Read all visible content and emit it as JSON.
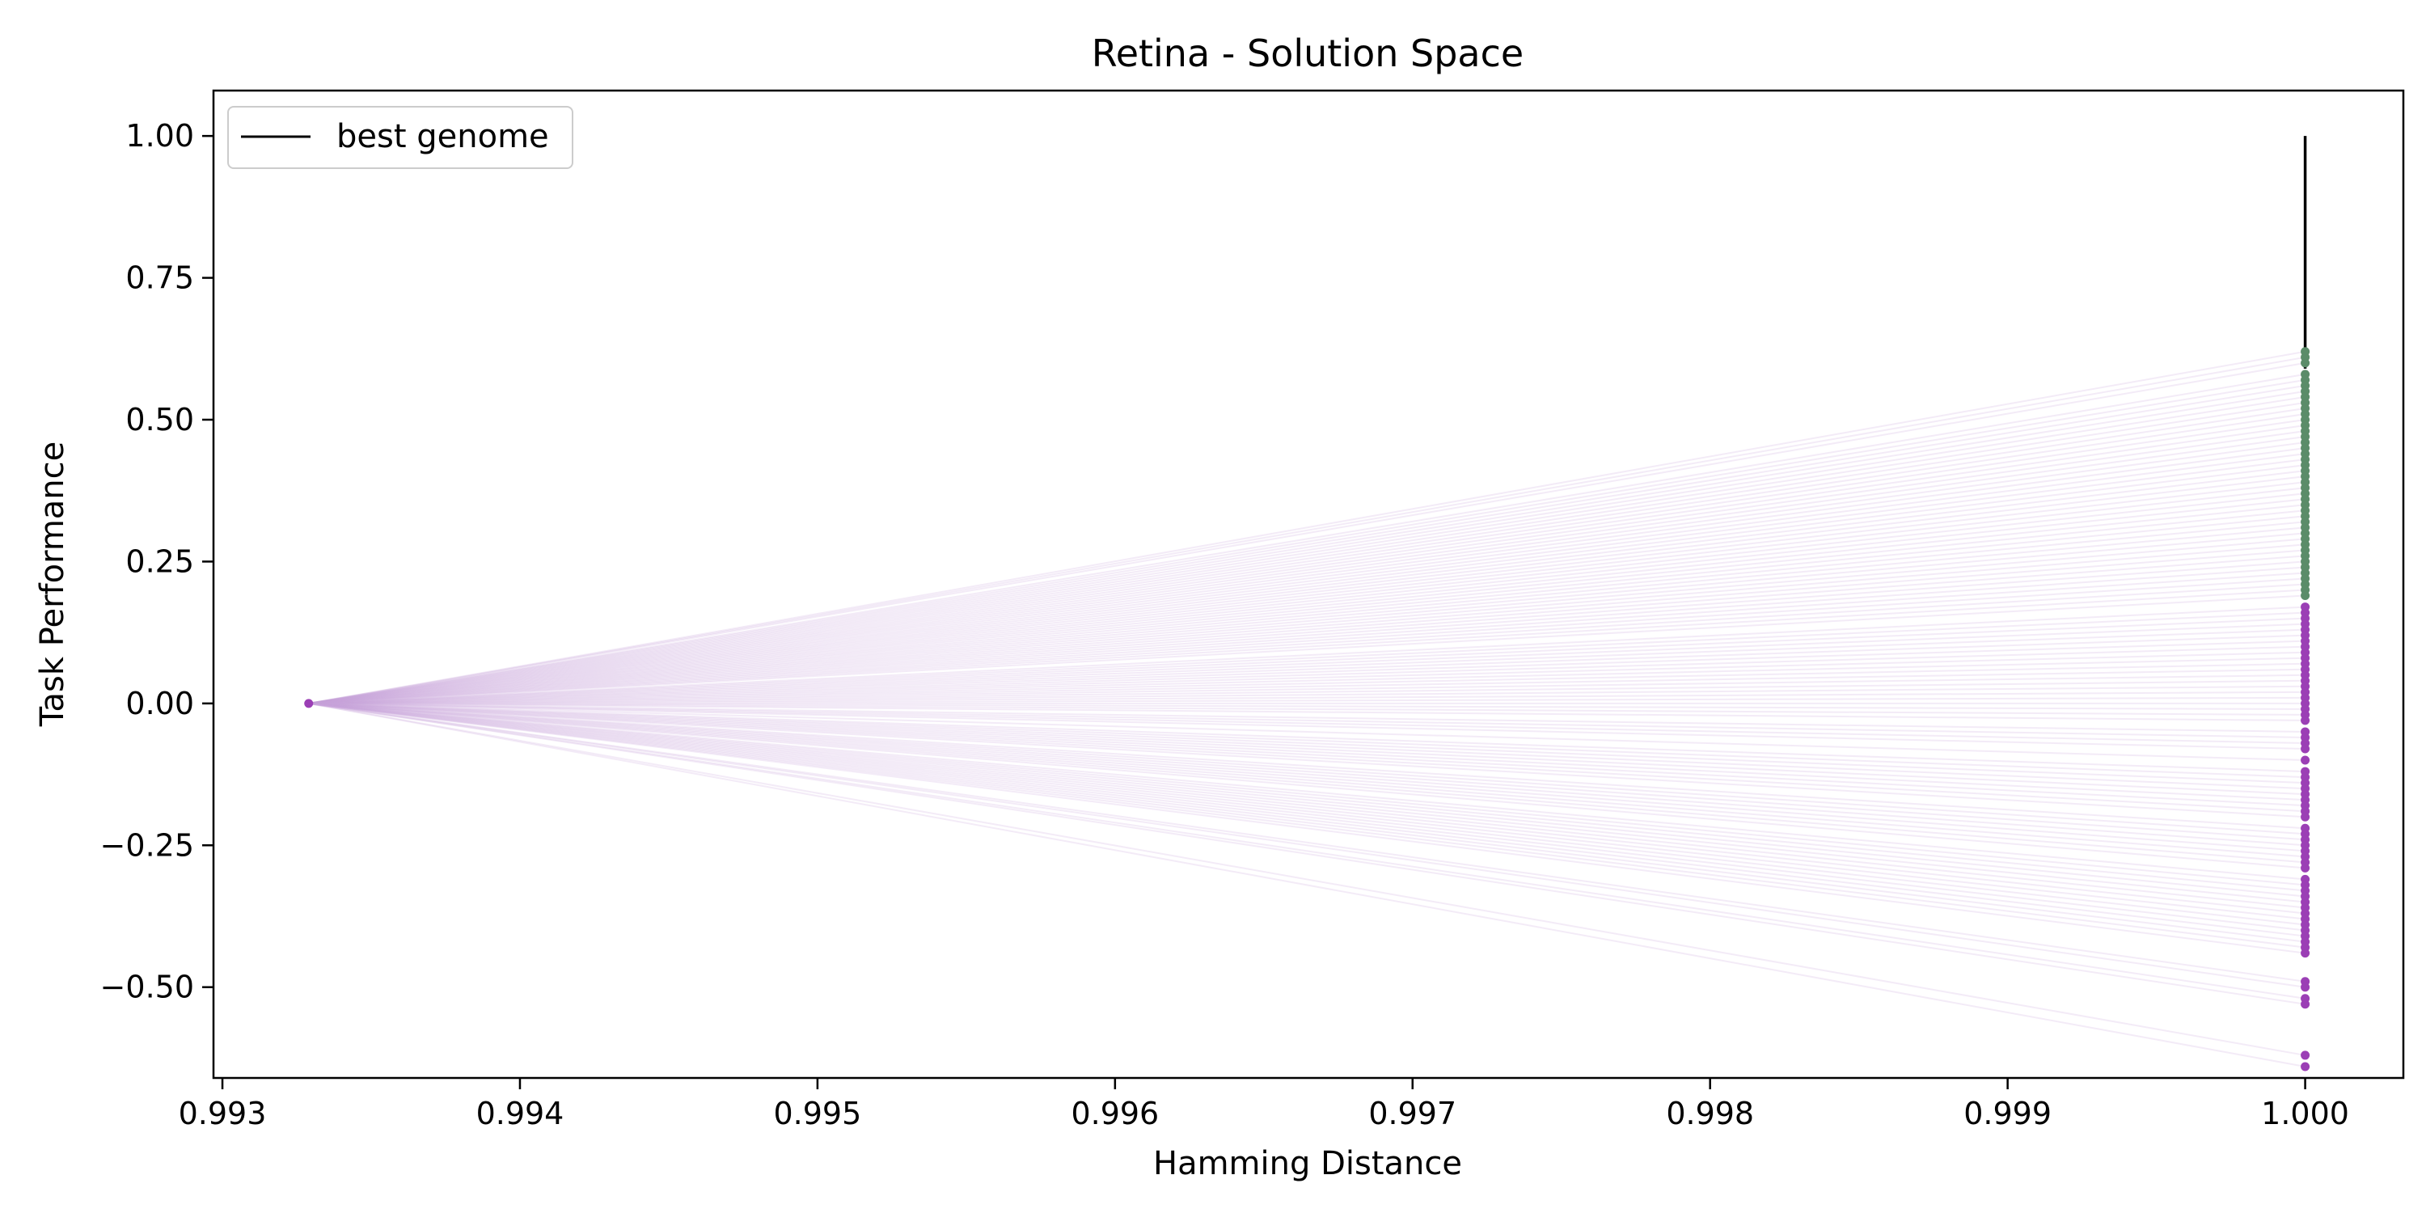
{
  "chart_data": {
    "type": "scatter",
    "title": "Retina - Solution Space",
    "xlabel": "Hamming Distance",
    "ylabel": "Task Performance",
    "xlim": [
      0.99297,
      1.00033
    ],
    "ylim": [
      -0.66,
      1.08
    ],
    "grid": false,
    "x_ticks": [
      0.993,
      0.994,
      0.995,
      0.996,
      0.997,
      0.998,
      0.999,
      1.0
    ],
    "x_tick_labels": [
      "0.993",
      "0.994",
      "0.995",
      "0.996",
      "0.997",
      "0.998",
      "0.999",
      "1.000"
    ],
    "y_ticks": [
      1.0,
      0.75,
      0.5,
      0.25,
      0.0,
      -0.25,
      -0.5
    ],
    "y_tick_labels": [
      "1.00",
      "0.75",
      "0.50",
      "0.25",
      "0.00",
      "−0.25",
      "−0.50"
    ],
    "legend": {
      "placement": "upper-left",
      "entries": [
        {
          "label": "best genome",
          "color": "#000000",
          "marker": "line"
        }
      ]
    },
    "origin_point": {
      "x": 0.99329,
      "y": 0.0,
      "color": "#9b3fb5"
    },
    "best_genome": {
      "x": 1.0,
      "y_from": 0.59,
      "y_to": 1.0,
      "color": "#000000"
    },
    "colors": {
      "positive_points": "#5b8c69",
      "negative_points": "#9b3fb5",
      "edges": "#c9a6dc"
    },
    "series": [
      {
        "group": "positive",
        "x": 1.0,
        "y": [
          0.62,
          0.61,
          0.6,
          0.58,
          0.57,
          0.56,
          0.55,
          0.54,
          0.53,
          0.52,
          0.51,
          0.5,
          0.49,
          0.48,
          0.47,
          0.46,
          0.45,
          0.44,
          0.43,
          0.42,
          0.41,
          0.4,
          0.39,
          0.38,
          0.37,
          0.36,
          0.35,
          0.34,
          0.33,
          0.32,
          0.31,
          0.3,
          0.29,
          0.28,
          0.27,
          0.26,
          0.25,
          0.24,
          0.23,
          0.22,
          0.21,
          0.2,
          0.19
        ]
      },
      {
        "group": "negative",
        "x": 1.0,
        "y": [
          0.17,
          0.16,
          0.15,
          0.14,
          0.13,
          0.12,
          0.11,
          0.1,
          0.09,
          0.08,
          0.07,
          0.06,
          0.05,
          0.04,
          0.03,
          0.02,
          0.01,
          0.0,
          -0.01,
          -0.02,
          -0.03,
          -0.05,
          -0.06,
          -0.07,
          -0.08,
          -0.1,
          -0.12,
          -0.13,
          -0.14,
          -0.15,
          -0.16,
          -0.17,
          -0.18,
          -0.19,
          -0.2,
          -0.22,
          -0.23,
          -0.24,
          -0.25,
          -0.26,
          -0.27,
          -0.28,
          -0.29,
          -0.31,
          -0.32,
          -0.33,
          -0.34,
          -0.35,
          -0.36,
          -0.37,
          -0.38,
          -0.39,
          -0.4,
          -0.41,
          -0.42,
          -0.43,
          -0.44,
          -0.49,
          -0.5,
          -0.52,
          -0.53,
          -0.62,
          -0.64
        ]
      }
    ]
  }
}
